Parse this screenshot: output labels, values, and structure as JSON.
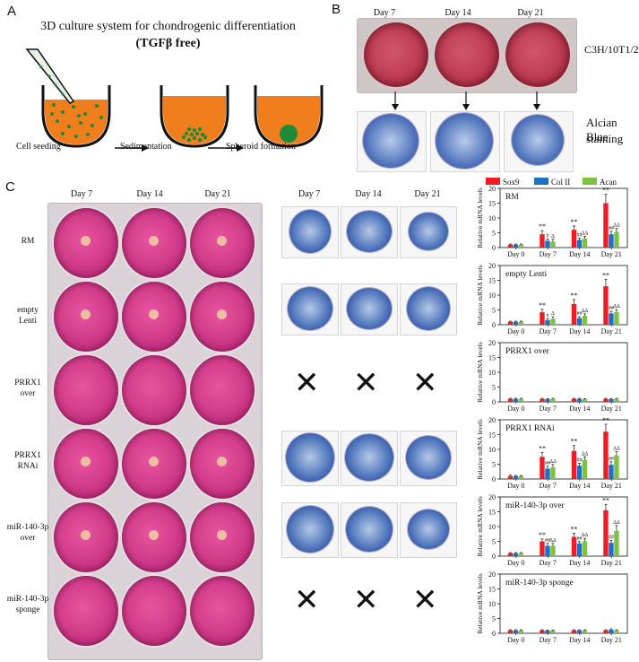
{
  "panel_a": {
    "letter": "A",
    "title": "3D culture system for chondrogenic differentiation",
    "subtitle": "(TGFβ free)",
    "steps": [
      "Cell seeding",
      "Sedimentation",
      "Spheroid formation"
    ]
  },
  "panel_b": {
    "letter": "B",
    "days": [
      "Day 7",
      "Day 14",
      "Day 21"
    ],
    "cell_line": "C3H/10T1/2",
    "stain_label_1": "Alcian Blue",
    "stain_label_2": "staining"
  },
  "panel_c": {
    "letter": "C",
    "plate_days": [
      "Day 7",
      "Day 14",
      "Day 21"
    ],
    "section_days": [
      "Day 7",
      "Day 14",
      "Day 21"
    ],
    "rows": [
      {
        "line1": "RM",
        "line2": ""
      },
      {
        "line1": "empty",
        "line2": "Lenti"
      },
      {
        "line1": "PRRX1",
        "line2": "over"
      },
      {
        "line1": "PRRX1",
        "line2": "RNAi"
      },
      {
        "line1": "miR-140-3p",
        "line2": "over"
      },
      {
        "line1": "miR-140-3p",
        "line2": "sponge"
      }
    ],
    "x_mark": "✕"
  },
  "chart_data": {
    "type": "bar",
    "ylabel": "Relative mRNA levels",
    "categories": [
      "Day 0",
      "Day 7",
      "Day 14",
      "Day 21"
    ],
    "legend": [
      {
        "name": "Sox9",
        "color": "#ee1c25"
      },
      {
        "name": "Col II",
        "color": "#1f6fc9"
      },
      {
        "name": "Acan",
        "color": "#7dc242"
      }
    ],
    "panels": [
      {
        "title": "RM",
        "ylim": [
          0,
          20
        ],
        "yticks": [
          0,
          5,
          10,
          15,
          20
        ],
        "series": [
          {
            "name": "Sox9",
            "values": [
              1.0,
              4.5,
              6.0,
              15.0
            ],
            "err": [
              0.2,
              1.2,
              1.3,
              3.0
            ]
          },
          {
            "name": "Col II",
            "values": [
              1.0,
              2.3,
              2.6,
              4.5
            ],
            "err": [
              0.2,
              0.6,
              0.6,
              1.0
            ]
          },
          {
            "name": "Acan",
            "values": [
              1.0,
              2.0,
              3.0,
              5.3
            ],
            "err": [
              0.2,
              0.8,
              0.8,
              1.2
            ]
          }
        ],
        "annotations": [
          {
            "cat": 1,
            "series": 0,
            "text": "**"
          },
          {
            "cat": 1,
            "series": 1,
            "text": "#"
          },
          {
            "cat": 1,
            "series": 2,
            "text": "Δ"
          },
          {
            "cat": 2,
            "series": 0,
            "text": "**"
          },
          {
            "cat": 2,
            "series": 1,
            "text": "##"
          },
          {
            "cat": 2,
            "series": 2,
            "text": "ΔΔ"
          },
          {
            "cat": 3,
            "series": 0,
            "text": "**"
          },
          {
            "cat": 3,
            "series": 1,
            "text": "##"
          },
          {
            "cat": 3,
            "series": 2,
            "text": "ΔΔ"
          }
        ]
      },
      {
        "title": "empty Lenti",
        "ylim": [
          0,
          20
        ],
        "yticks": [
          0,
          5,
          10,
          15,
          20
        ],
        "series": [
          {
            "name": "Sox9",
            "values": [
              1.0,
              4.2,
              7.0,
              13.0
            ],
            "err": [
              0.2,
              1.0,
              1.5,
              2.3
            ]
          },
          {
            "name": "Col II",
            "values": [
              1.0,
              1.5,
              2.2,
              3.8
            ],
            "err": [
              0.2,
              0.5,
              0.5,
              0.7
            ]
          },
          {
            "name": "Acan",
            "values": [
              1.0,
              2.0,
              3.0,
              4.3
            ],
            "err": [
              0.2,
              0.7,
              0.7,
              0.8
            ]
          }
        ],
        "annotations": [
          {
            "cat": 1,
            "series": 0,
            "text": "**"
          },
          {
            "cat": 1,
            "series": 1,
            "text": "#"
          },
          {
            "cat": 1,
            "series": 2,
            "text": "Δ"
          },
          {
            "cat": 2,
            "series": 0,
            "text": "**"
          },
          {
            "cat": 2,
            "series": 1,
            "text": "##"
          },
          {
            "cat": 2,
            "series": 2,
            "text": "ΔΔ"
          },
          {
            "cat": 3,
            "series": 0,
            "text": "**"
          },
          {
            "cat": 3,
            "series": 1,
            "text": "##"
          },
          {
            "cat": 3,
            "series": 2,
            "text": "ΔΔ"
          }
        ]
      },
      {
        "title": "PRRX1 over",
        "ylim": [
          0,
          20
        ],
        "yticks": [
          0,
          5,
          10,
          15,
          20
        ],
        "series": [
          {
            "name": "Sox9",
            "values": [
              1.0,
              1.0,
              1.0,
              1.0
            ],
            "err": [
              0.2,
              0.2,
              0.2,
              0.2
            ]
          },
          {
            "name": "Col II",
            "values": [
              1.0,
              0.9,
              1.0,
              0.9
            ],
            "err": [
              0.2,
              0.2,
              0.2,
              0.2
            ]
          },
          {
            "name": "Acan",
            "values": [
              1.0,
              1.0,
              0.9,
              1.0
            ],
            "err": [
              0.2,
              0.2,
              0.2,
              0.2
            ]
          }
        ],
        "annotations": []
      },
      {
        "title": "PRRX1 RNAi",
        "ylim": [
          0,
          20
        ],
        "yticks": [
          0,
          5,
          10,
          15,
          20
        ],
        "series": [
          {
            "name": "Sox9",
            "values": [
              1.0,
              7.5,
              9.5,
              16.0
            ],
            "err": [
              0.3,
              1.5,
              1.8,
              2.5
            ]
          },
          {
            "name": "Col II",
            "values": [
              1.0,
              3.5,
              4.5,
              4.8
            ],
            "err": [
              0.2,
              0.8,
              0.8,
              1.0
            ]
          },
          {
            "name": "Acan",
            "values": [
              1.0,
              4.0,
              6.5,
              8.0
            ],
            "err": [
              0.2,
              0.9,
              1.0,
              1.2
            ]
          }
        ],
        "annotations": [
          {
            "cat": 1,
            "series": 0,
            "text": "**"
          },
          {
            "cat": 1,
            "series": 1,
            "text": "##"
          },
          {
            "cat": 1,
            "series": 2,
            "text": "ΔΔ"
          },
          {
            "cat": 2,
            "series": 0,
            "text": "**"
          },
          {
            "cat": 2,
            "series": 1,
            "text": "##"
          },
          {
            "cat": 2,
            "series": 2,
            "text": "ΔΔ"
          },
          {
            "cat": 3,
            "series": 0,
            "text": "**"
          },
          {
            "cat": 3,
            "series": 1,
            "text": "##"
          },
          {
            "cat": 3,
            "series": 2,
            "text": "ΔΔ"
          }
        ]
      },
      {
        "title": "miR-140-3p over",
        "ylim": [
          0,
          20
        ],
        "yticks": [
          0,
          5,
          10,
          15,
          20
        ],
        "series": [
          {
            "name": "Sox9",
            "values": [
              1.0,
              5.0,
              6.5,
              15.5
            ],
            "err": [
              0.2,
              0.8,
              1.2,
              2.0
            ]
          },
          {
            "name": "Col II",
            "values": [
              1.0,
              3.5,
              4.3,
              4.5
            ],
            "err": [
              0.2,
              0.8,
              0.6,
              0.8
            ]
          },
          {
            "name": "Acan",
            "values": [
              1.0,
              3.5,
              5.0,
              8.5
            ],
            "err": [
              0.2,
              0.8,
              1.0,
              1.8
            ]
          }
        ],
        "annotations": [
          {
            "cat": 1,
            "series": 0,
            "text": "**"
          },
          {
            "cat": 1,
            "series": 1,
            "text": "##"
          },
          {
            "cat": 1,
            "series": 2,
            "text": "ΔΔ"
          },
          {
            "cat": 2,
            "series": 0,
            "text": "**"
          },
          {
            "cat": 2,
            "series": 1,
            "text": "##"
          },
          {
            "cat": 2,
            "series": 2,
            "text": "ΔΔ"
          },
          {
            "cat": 3,
            "series": 0,
            "text": "**"
          },
          {
            "cat": 3,
            "series": 1,
            "text": "##"
          },
          {
            "cat": 3,
            "series": 2,
            "text": "ΔΔ"
          }
        ]
      },
      {
        "title": "miR-140-3p sponge",
        "ylim": [
          0,
          20
        ],
        "yticks": [
          0,
          5,
          10,
          15,
          20
        ],
        "series": [
          {
            "name": "Sox9",
            "values": [
              1.0,
              1.0,
              1.0,
              1.0
            ],
            "err": [
              0.2,
              0.2,
              0.2,
              0.2
            ]
          },
          {
            "name": "Col II",
            "values": [
              1.0,
              0.9,
              1.0,
              1.2
            ],
            "err": [
              0.2,
              0.2,
              0.2,
              0.3
            ]
          },
          {
            "name": "Acan",
            "values": [
              1.0,
              0.9,
              1.0,
              1.0
            ],
            "err": [
              0.2,
              0.2,
              0.2,
              0.2
            ]
          }
        ],
        "annotations": []
      }
    ]
  }
}
